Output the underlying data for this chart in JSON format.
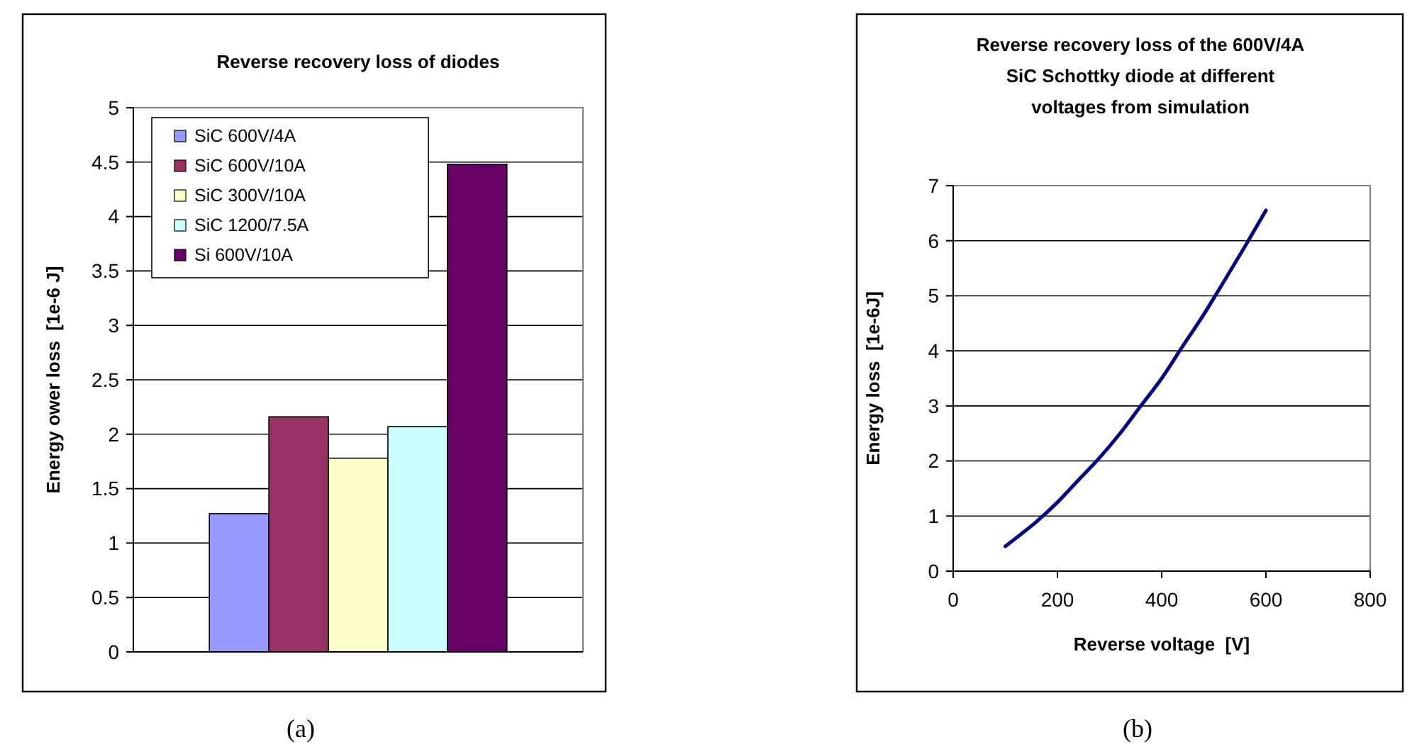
{
  "chart_data": [
    {
      "type": "bar",
      "title": "Reverse recovery loss of diodes",
      "ylabel": "Energy ower loss  [1e-6 J]",
      "categories": [
        null
      ],
      "ylim": [
        0,
        5
      ],
      "yticks": [
        0,
        0.5,
        1,
        1.5,
        2,
        2.5,
        3,
        3.5,
        4,
        4.5,
        5
      ],
      "grid": "y",
      "legend": "top left",
      "annotations": [
        "(a)"
      ],
      "series": [
        {
          "name": "SiC 600V/4A",
          "color": "#9999ff",
          "values": [
            1.27
          ]
        },
        {
          "name": "SiC 600V/10A",
          "color": "#993366",
          "values": [
            2.16
          ]
        },
        {
          "name": "SiC 300V/10A",
          "color": "#ffffcc",
          "values": [
            1.78
          ]
        },
        {
          "name": "SiC 1200/7.5A",
          "color": "#ccffff",
          "values": [
            2.07
          ]
        },
        {
          "name": "Si 600V/10A",
          "color": "#660066",
          "values": [
            4.48
          ]
        }
      ]
    },
    {
      "type": "line",
      "title": "Reverse recovery loss of the 600V/4A SiC Schottky diode at different voltages from simulation",
      "xlabel": "Reverse voltage  [V]",
      "ylabel": "Energy loss  [1e-6J]",
      "xlim": [
        0,
        800
      ],
      "xticks": [
        0,
        200,
        400,
        600,
        800
      ],
      "ylim": [
        0,
        7
      ],
      "yticks": [
        0,
        1,
        2,
        3,
        4,
        5,
        6,
        7
      ],
      "grid": "y",
      "annotations": [
        "(b)"
      ],
      "series": [
        {
          "color": "#000080",
          "x": [
            100,
            130,
            160,
            200,
            240,
            280,
            320,
            360,
            400,
            440,
            480,
            520,
            560,
            600
          ],
          "values": [
            0.45,
            0.67,
            0.9,
            1.25,
            1.65,
            2.05,
            2.5,
            3.0,
            3.5,
            4.08,
            4.65,
            5.27,
            5.9,
            6.55
          ]
        }
      ]
    }
  ]
}
